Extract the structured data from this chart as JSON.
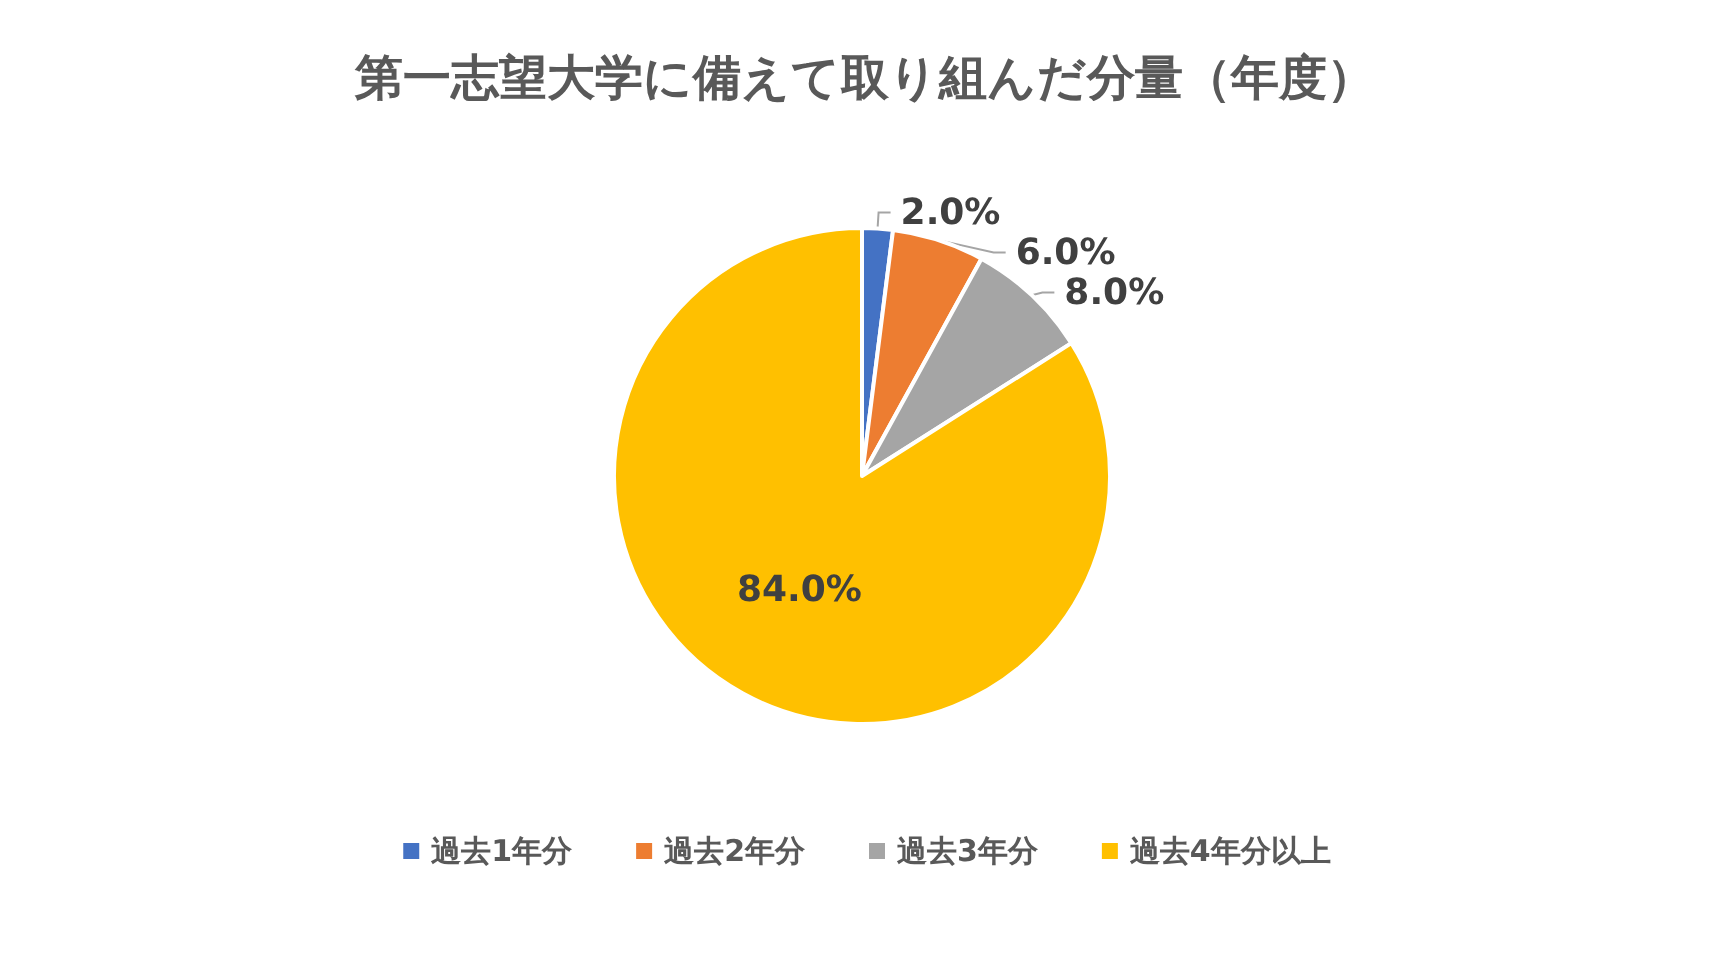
{
  "chart_data": {
    "type": "pie",
    "title": "第一志望大学に備えて取り組んだ分量（年度）",
    "categories": [
      "過去1年分",
      "過去2年分",
      "過去3年分",
      "過去4年分以上"
    ],
    "values": [
      2,
      6,
      8,
      84
    ],
    "colors": [
      "#4472c4",
      "#ed7d31",
      "#a5a5a5",
      "#ffc000"
    ],
    "value_labels": [
      "2.0%",
      "6.0%",
      "8.0%",
      "84.0%"
    ],
    "legend": "bottom"
  }
}
